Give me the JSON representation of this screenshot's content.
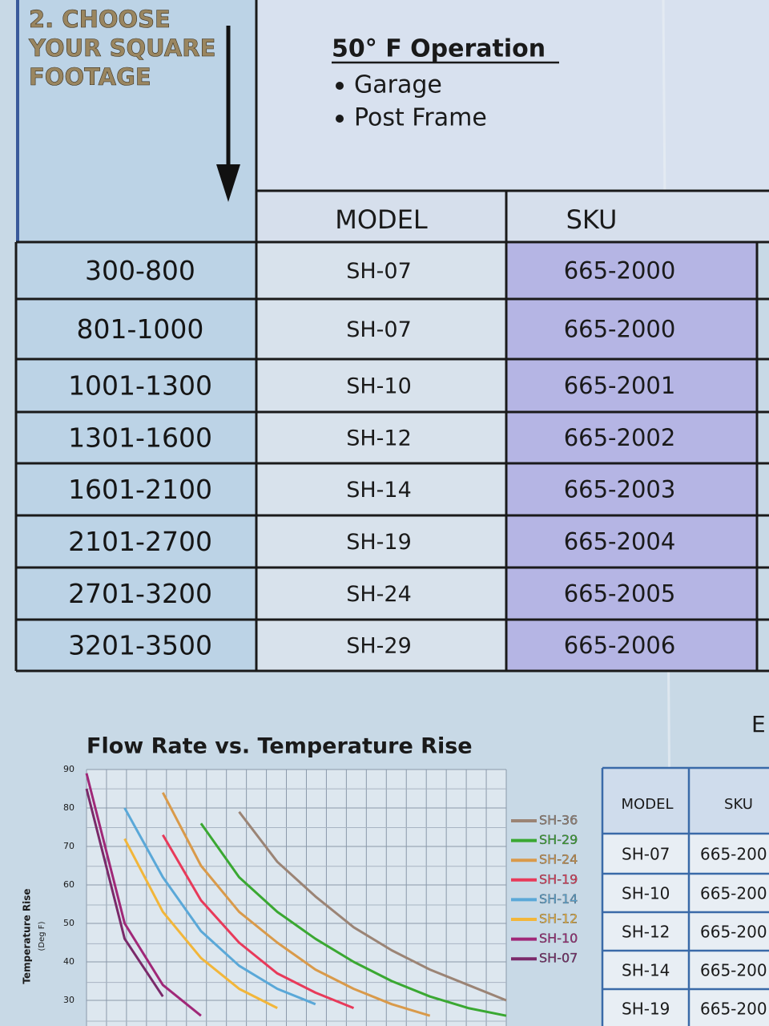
{
  "step": {
    "lines": [
      "2. CHOOSE",
      "YOUR SQUARE",
      "FOOTAGE"
    ]
  },
  "operation": {
    "title": "50° F Operation",
    "bullets": [
      "Garage",
      "Post Frame"
    ]
  },
  "table": {
    "headers": [
      "MODEL",
      "SKU"
    ],
    "rows": [
      [
        "300-800",
        "SH-07",
        "665-2000"
      ],
      [
        "801-1000",
        "SH-07",
        "665-2000"
      ],
      [
        "1001-1300",
        "SH-10",
        "665-2001"
      ],
      [
        "1301-1600",
        "SH-12",
        "665-2002"
      ],
      [
        "1601-2100",
        "SH-14",
        "665-2003"
      ],
      [
        "2101-2700",
        "SH-19",
        "665-2004"
      ],
      [
        "2701-3200",
        "SH-24",
        "665-2005"
      ],
      [
        "3201-3500",
        "SH-29",
        "665-2006"
      ]
    ]
  },
  "chart": {
    "type": "line",
    "title": "Flow Rate vs. Temperature Rise",
    "y_label": "Temperature Rise",
    "y_unit_label": "(Deg F)",
    "categories": [
      null,
      null,
      null,
      null,
      null,
      null,
      null,
      null,
      null,
      null,
      null,
      null
    ],
    "ylim": [
      25,
      90
    ],
    "yticks": [
      30,
      40,
      50,
      60,
      70,
      80,
      90
    ],
    "grid": true,
    "series": [
      {
        "name": "SH-36",
        "color": "#9b8475",
        "values": [
          null,
          null,
          null,
          null,
          79,
          66,
          57,
          49,
          43,
          38,
          34,
          30
        ]
      },
      {
        "name": "SH-29",
        "color": "#3aa832",
        "values": [
          null,
          null,
          null,
          76,
          62,
          53,
          46,
          40,
          35,
          31,
          28,
          26
        ]
      },
      {
        "name": "SH-24",
        "color": "#d99a4a",
        "values": [
          null,
          null,
          84,
          65,
          53,
          45,
          38,
          33,
          29,
          26,
          null,
          null
        ]
      },
      {
        "name": "SH-19",
        "color": "#e83a5a",
        "values": [
          null,
          null,
          73,
          56,
          45,
          37,
          32,
          28,
          null,
          null,
          null,
          null
        ]
      },
      {
        "name": "SH-14",
        "color": "#5aa8d8",
        "values": [
          null,
          80,
          62,
          48,
          39,
          33,
          29,
          null,
          null,
          null,
          null,
          null
        ]
      },
      {
        "name": "SH-12",
        "color": "#f2b63a",
        "values": [
          null,
          72,
          53,
          41,
          33,
          28,
          null,
          null,
          null,
          null,
          null,
          null
        ]
      },
      {
        "name": "SH-10",
        "color": "#a02878",
        "values": [
          89,
          50,
          34,
          26,
          null,
          null,
          null,
          null,
          null,
          null,
          null,
          null
        ]
      },
      {
        "name": "SH-07",
        "color": "#7a2a6a",
        "values": [
          85,
          46,
          31,
          null,
          null,
          null,
          null,
          null,
          null,
          null,
          null,
          null
        ]
      }
    ]
  },
  "side_table": {
    "title": "E",
    "headers": [
      "MODEL",
      "SKU"
    ],
    "rows": [
      [
        "SH-07",
        "665-200"
      ],
      [
        "SH-10",
        "665-200"
      ],
      [
        "SH-12",
        "665-200"
      ],
      [
        "SH-14",
        "665-200"
      ],
      [
        "SH-19",
        "665-200"
      ]
    ]
  }
}
